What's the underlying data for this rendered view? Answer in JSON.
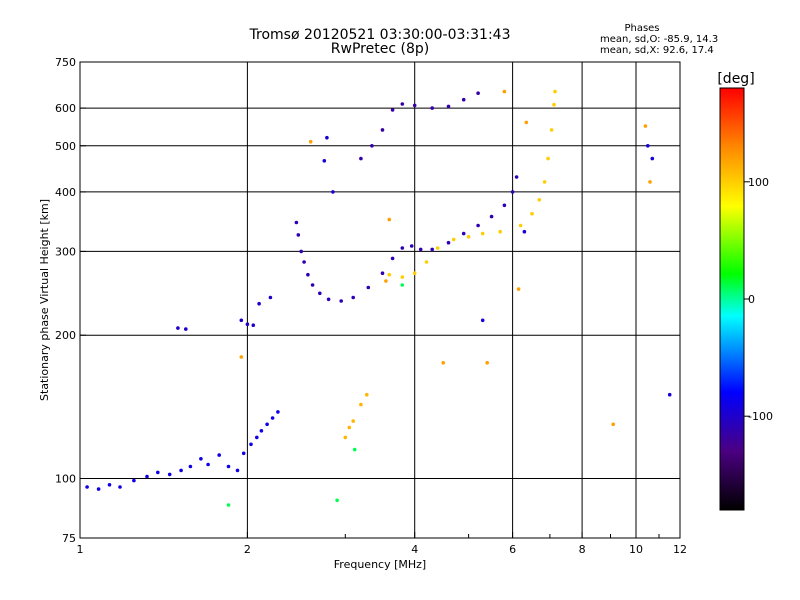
{
  "chart_data": {
    "type": "scatter",
    "title": "Tromsø 20120521 03:30:00-03:31:43",
    "subtitle": "RwPretec (8p)",
    "xlabel": "Frequency [MHz]",
    "ylabel": "Stationary phase Virtual Height [km]",
    "xscale": "log",
    "yscale": "log",
    "xlim": [
      1,
      12
    ],
    "ylim": [
      75,
      750
    ],
    "grid": true,
    "x_ticks": [
      1,
      2,
      4,
      6,
      8,
      10,
      12
    ],
    "x_tick_labels": [
      "1",
      "2",
      "4",
      "6",
      "8",
      "10",
      "12"
    ],
    "y_ticks": [
      75,
      100,
      200,
      300,
      400,
      500,
      600,
      750
    ],
    "y_tick_labels": [
      "75",
      "100",
      "200",
      "300",
      "400",
      "500",
      "600",
      "750"
    ],
    "phases_box": {
      "title": "Phases",
      "line_o": "mean, sd,O:  -85.9, 14.3",
      "line_x": "mean, sd,X:  92.6, 17.4"
    },
    "colorbar": {
      "label": "[deg]",
      "range": [
        -180,
        180
      ],
      "ticks": [
        100,
        0,
        -100
      ],
      "tick_labels": [
        "100",
        "0",
        "-100"
      ]
    },
    "traces": [
      {
        "phase": -90,
        "points": [
          [
            1.03,
            96
          ],
          [
            1.08,
            95
          ],
          [
            1.13,
            97
          ],
          [
            1.18,
            96
          ],
          [
            1.25,
            99
          ],
          [
            1.32,
            101
          ],
          [
            1.38,
            103
          ],
          [
            1.45,
            102
          ],
          [
            1.52,
            104
          ],
          [
            1.58,
            106
          ],
          [
            1.65,
            110
          ],
          [
            1.7,
            107
          ],
          [
            1.78,
            112
          ],
          [
            1.85,
            106
          ],
          [
            1.92,
            104
          ],
          [
            1.97,
            113
          ],
          [
            2.03,
            118
          ],
          [
            2.08,
            122
          ],
          [
            2.12,
            126
          ],
          [
            2.17,
            130
          ],
          [
            2.22,
            134
          ],
          [
            2.27,
            138
          ]
        ]
      },
      {
        "phase": -100,
        "points": [
          [
            1.5,
            207
          ],
          [
            1.55,
            206
          ],
          [
            1.95,
            215
          ],
          [
            2.0,
            211
          ],
          [
            2.05,
            210
          ],
          [
            2.1,
            233
          ],
          [
            2.2,
            240
          ]
        ]
      },
      {
        "phase": -110,
        "points": [
          [
            2.45,
            345
          ],
          [
            2.47,
            325
          ],
          [
            2.5,
            300
          ],
          [
            2.53,
            285
          ],
          [
            2.57,
            268
          ],
          [
            2.62,
            255
          ],
          [
            2.7,
            245
          ],
          [
            2.8,
            238
          ],
          [
            2.95,
            236
          ],
          [
            3.1,
            240
          ],
          [
            3.3,
            252
          ],
          [
            3.5,
            270
          ],
          [
            3.65,
            290
          ],
          [
            3.8,
            305
          ],
          [
            3.95,
            308
          ],
          [
            4.1,
            303
          ],
          [
            4.3,
            303
          ],
          [
            4.6,
            313
          ],
          [
            4.9,
            327
          ],
          [
            5.2,
            340
          ],
          [
            5.5,
            355
          ],
          [
            5.8,
            375
          ],
          [
            6.0,
            400
          ],
          [
            6.1,
            430
          ]
        ]
      },
      {
        "phase": 100,
        "points": [
          [
            3.6,
            268
          ],
          [
            3.8,
            265
          ],
          [
            4.0,
            270
          ],
          [
            4.2,
            285
          ],
          [
            4.4,
            305
          ],
          [
            4.7,
            318
          ],
          [
            5.0,
            322
          ],
          [
            5.3,
            327
          ],
          [
            5.7,
            330
          ],
          [
            6.2,
            340
          ],
          [
            6.5,
            360
          ],
          [
            6.7,
            385
          ],
          [
            6.85,
            420
          ],
          [
            6.95,
            470
          ],
          [
            7.05,
            540
          ],
          [
            7.12,
            610
          ],
          [
            7.15,
            650
          ]
        ]
      },
      {
        "phase": -115,
        "points": [
          [
            3.2,
            470
          ],
          [
            3.35,
            500
          ],
          [
            3.5,
            540
          ],
          [
            3.65,
            595
          ],
          [
            3.8,
            612
          ],
          [
            4.0,
            608
          ],
          [
            4.3,
            600
          ],
          [
            4.6,
            605
          ],
          [
            4.9,
            625
          ],
          [
            5.2,
            645
          ]
        ]
      },
      {
        "phase": 110,
        "points": [
          [
            3.0,
            122
          ],
          [
            3.05,
            128
          ],
          [
            3.1,
            132
          ],
          [
            3.2,
            143
          ],
          [
            3.28,
            150
          ]
        ]
      },
      {
        "phase": -95,
        "points": [
          [
            2.75,
            465
          ],
          [
            2.78,
            520
          ],
          [
            2.85,
            400
          ],
          [
            5.3,
            215
          ],
          [
            6.3,
            330
          ],
          [
            10.5,
            500
          ],
          [
            10.7,
            470
          ],
          [
            11.5,
            150
          ]
        ]
      },
      {
        "phase": 120,
        "points": [
          [
            1.95,
            180
          ],
          [
            2.6,
            510
          ],
          [
            3.55,
            260
          ],
          [
            3.6,
            350
          ],
          [
            4.5,
            175
          ],
          [
            5.4,
            175
          ],
          [
            5.8,
            650
          ],
          [
            6.15,
            250
          ],
          [
            6.35,
            560
          ],
          [
            9.1,
            130
          ],
          [
            10.4,
            550
          ],
          [
            10.6,
            420
          ]
        ]
      },
      {
        "phase": 10,
        "points": [
          [
            3.8,
            255
          ],
          [
            3.12,
            115
          ],
          [
            1.85,
            88
          ],
          [
            2.9,
            90
          ]
        ]
      }
    ]
  }
}
